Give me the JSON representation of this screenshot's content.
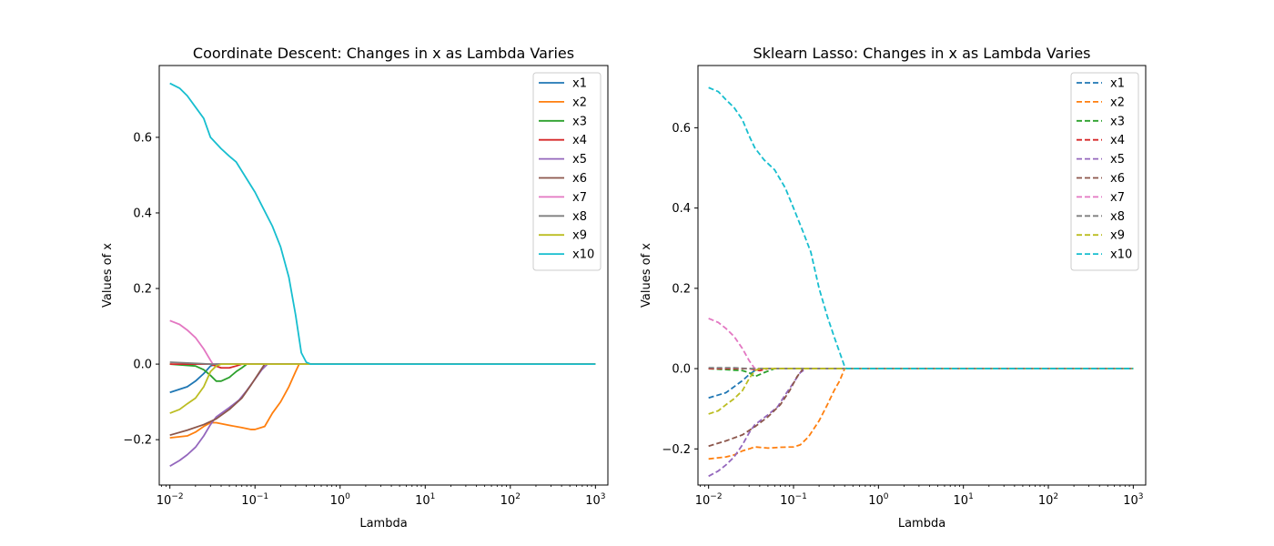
{
  "chart_data": [
    {
      "type": "line",
      "title": "Coordinate Descent: Changes in x as Lambda Varies",
      "xlabel": "Lambda",
      "ylabel": "Values of x",
      "xscale": "log",
      "xlim": [
        0.0075,
        1400
      ],
      "ylim": [
        -0.32,
        0.79
      ],
      "xticks": [
        0.01,
        0.1,
        1,
        10,
        100,
        1000
      ],
      "xtick_labels": [
        [
          "10",
          "−2"
        ],
        [
          "10",
          "−1"
        ],
        [
          "10",
          "0"
        ],
        [
          "10",
          "1"
        ],
        [
          "10",
          "2"
        ],
        [
          "10",
          "3"
        ]
      ],
      "yticks": [
        -0.2,
        0.0,
        0.2,
        0.4,
        0.6
      ],
      "ytick_labels": [
        "−0.2",
        "0.0",
        "0.2",
        "0.4",
        "0.6"
      ],
      "line_style": "solid",
      "legend_position": "upper right",
      "series": [
        {
          "name": "x1",
          "color": "#1f77b4",
          "points": [
            [
              0.01,
              -0.075
            ],
            [
              0.016,
              -0.06
            ],
            [
              0.02,
              -0.045
            ],
            [
              0.025,
              -0.025
            ],
            [
              0.03,
              -0.005
            ],
            [
              0.035,
              0
            ],
            [
              1000,
              0
            ]
          ]
        },
        {
          "name": "x2",
          "color": "#ff7f0e",
          "points": [
            [
              0.01,
              -0.195
            ],
            [
              0.016,
              -0.19
            ],
            [
              0.02,
              -0.18
            ],
            [
              0.025,
              -0.165
            ],
            [
              0.03,
              -0.155
            ],
            [
              0.035,
              -0.155
            ],
            [
              0.05,
              -0.162
            ],
            [
              0.07,
              -0.168
            ],
            [
              0.09,
              -0.173
            ],
            [
              0.1,
              -0.173
            ],
            [
              0.13,
              -0.165
            ],
            [
              0.16,
              -0.13
            ],
            [
              0.2,
              -0.1
            ],
            [
              0.25,
              -0.06
            ],
            [
              0.3,
              -0.02
            ],
            [
              0.33,
              0
            ],
            [
              1000,
              0
            ]
          ]
        },
        {
          "name": "x3",
          "color": "#2ca02c",
          "points": [
            [
              0.01,
              0
            ],
            [
              0.02,
              -0.005
            ],
            [
              0.025,
              -0.015
            ],
            [
              0.03,
              -0.03
            ],
            [
              0.035,
              -0.045
            ],
            [
              0.04,
              -0.045
            ],
            [
              0.05,
              -0.035
            ],
            [
              0.06,
              -0.02
            ],
            [
              0.07,
              -0.01
            ],
            [
              0.08,
              0
            ],
            [
              1000,
              0
            ]
          ]
        },
        {
          "name": "x4",
          "color": "#d62728",
          "points": [
            [
              0.01,
              0
            ],
            [
              0.03,
              0
            ],
            [
              0.04,
              -0.01
            ],
            [
              0.05,
              -0.01
            ],
            [
              0.06,
              -0.005
            ],
            [
              0.07,
              0
            ],
            [
              1000,
              0
            ]
          ]
        },
        {
          "name": "x5",
          "color": "#9467bd",
          "points": [
            [
              0.01,
              -0.27
            ],
            [
              0.013,
              -0.255
            ],
            [
              0.016,
              -0.24
            ],
            [
              0.02,
              -0.22
            ],
            [
              0.025,
              -0.19
            ],
            [
              0.03,
              -0.16
            ],
            [
              0.035,
              -0.14
            ],
            [
              0.05,
              -0.115
            ],
            [
              0.065,
              -0.095
            ],
            [
              0.08,
              -0.07
            ],
            [
              0.1,
              -0.04
            ],
            [
              0.12,
              -0.015
            ],
            [
              0.14,
              0
            ],
            [
              1000,
              0
            ]
          ]
        },
        {
          "name": "x6",
          "color": "#8c564b",
          "points": [
            [
              0.01,
              -0.188
            ],
            [
              0.016,
              -0.175
            ],
            [
              0.025,
              -0.16
            ],
            [
              0.035,
              -0.145
            ],
            [
              0.05,
              -0.12
            ],
            [
              0.07,
              -0.09
            ],
            [
              0.09,
              -0.055
            ],
            [
              0.11,
              -0.025
            ],
            [
              0.13,
              0
            ],
            [
              1000,
              0
            ]
          ]
        },
        {
          "name": "x7",
          "color": "#e377c2",
          "points": [
            [
              0.01,
              0.115
            ],
            [
              0.013,
              0.105
            ],
            [
              0.016,
              0.09
            ],
            [
              0.02,
              0.07
            ],
            [
              0.025,
              0.04
            ],
            [
              0.03,
              0.01
            ],
            [
              0.032,
              0
            ],
            [
              1000,
              0
            ]
          ]
        },
        {
          "name": "x8",
          "color": "#7f7f7f",
          "points": [
            [
              0.01,
              0.005
            ],
            [
              0.02,
              0.002
            ],
            [
              0.03,
              0
            ],
            [
              1000,
              0
            ]
          ]
        },
        {
          "name": "x9",
          "color": "#bcbd22",
          "points": [
            [
              0.01,
              -0.13
            ],
            [
              0.013,
              -0.12
            ],
            [
              0.016,
              -0.105
            ],
            [
              0.02,
              -0.09
            ],
            [
              0.025,
              -0.06
            ],
            [
              0.03,
              -0.02
            ],
            [
              0.035,
              -0.005
            ],
            [
              0.04,
              0
            ],
            [
              1000,
              0
            ]
          ]
        },
        {
          "name": "x10",
          "color": "#17becf",
          "points": [
            [
              0.01,
              0.743
            ],
            [
              0.013,
              0.73
            ],
            [
              0.016,
              0.71
            ],
            [
              0.02,
              0.68
            ],
            [
              0.025,
              0.65
            ],
            [
              0.03,
              0.6
            ],
            [
              0.04,
              0.57
            ],
            [
              0.05,
              0.55
            ],
            [
              0.06,
              0.535
            ],
            [
              0.08,
              0.49
            ],
            [
              0.1,
              0.455
            ],
            [
              0.12,
              0.42
            ],
            [
              0.16,
              0.365
            ],
            [
              0.2,
              0.31
            ],
            [
              0.25,
              0.23
            ],
            [
              0.3,
              0.13
            ],
            [
              0.35,
              0.03
            ],
            [
              0.4,
              0.005
            ],
            [
              0.45,
              0
            ],
            [
              1000,
              0
            ]
          ]
        }
      ]
    },
    {
      "type": "line",
      "title": "Sklearn Lasso: Changes in x as Lambda Varies",
      "xlabel": "Lambda",
      "ylabel": "Values of x",
      "xscale": "log",
      "xlim": [
        0.0075,
        1400
      ],
      "ylim": [
        -0.29,
        0.755
      ],
      "xticks": [
        0.01,
        0.1,
        1,
        10,
        100,
        1000
      ],
      "xtick_labels": [
        [
          "10",
          "−2"
        ],
        [
          "10",
          "−1"
        ],
        [
          "10",
          "0"
        ],
        [
          "10",
          "1"
        ],
        [
          "10",
          "2"
        ],
        [
          "10",
          "3"
        ]
      ],
      "yticks": [
        -0.2,
        0.0,
        0.2,
        0.4,
        0.6
      ],
      "ytick_labels": [
        "−0.2",
        "0.0",
        "0.2",
        "0.4",
        "0.6"
      ],
      "line_style": "dashed",
      "legend_position": "upper right",
      "series": [
        {
          "name": "x1",
          "color": "#1f77b4",
          "points": [
            [
              0.01,
              -0.073
            ],
            [
              0.016,
              -0.06
            ],
            [
              0.02,
              -0.045
            ],
            [
              0.025,
              -0.03
            ],
            [
              0.03,
              -0.015
            ],
            [
              0.035,
              -0.005
            ],
            [
              0.04,
              0
            ],
            [
              1000,
              0
            ]
          ]
        },
        {
          "name": "x2",
          "color": "#ff7f0e",
          "points": [
            [
              0.01,
              -0.225
            ],
            [
              0.016,
              -0.22
            ],
            [
              0.02,
              -0.215
            ],
            [
              0.025,
              -0.205
            ],
            [
              0.03,
              -0.2
            ],
            [
              0.035,
              -0.195
            ],
            [
              0.05,
              -0.198
            ],
            [
              0.07,
              -0.196
            ],
            [
              0.1,
              -0.195
            ],
            [
              0.12,
              -0.19
            ],
            [
              0.15,
              -0.17
            ],
            [
              0.2,
              -0.13
            ],
            [
              0.25,
              -0.09
            ],
            [
              0.3,
              -0.055
            ],
            [
              0.35,
              -0.03
            ],
            [
              0.4,
              0
            ],
            [
              1000,
              0
            ]
          ]
        },
        {
          "name": "x3",
          "color": "#2ca02c",
          "points": [
            [
              0.01,
              0
            ],
            [
              0.025,
              -0.005
            ],
            [
              0.03,
              -0.01
            ],
            [
              0.035,
              -0.02
            ],
            [
              0.045,
              -0.01
            ],
            [
              0.06,
              0
            ],
            [
              1000,
              0
            ]
          ]
        },
        {
          "name": "x4",
          "color": "#d62728",
          "points": [
            [
              0.01,
              0
            ],
            [
              0.03,
              0
            ],
            [
              0.04,
              -0.005
            ],
            [
              0.05,
              0
            ],
            [
              1000,
              0
            ]
          ]
        },
        {
          "name": "x5",
          "color": "#9467bd",
          "points": [
            [
              0.01,
              -0.268
            ],
            [
              0.013,
              -0.255
            ],
            [
              0.016,
              -0.24
            ],
            [
              0.02,
              -0.22
            ],
            [
              0.025,
              -0.19
            ],
            [
              0.03,
              -0.16
            ],
            [
              0.035,
              -0.14
            ],
            [
              0.05,
              -0.115
            ],
            [
              0.065,
              -0.095
            ],
            [
              0.08,
              -0.065
            ],
            [
              0.1,
              -0.035
            ],
            [
              0.12,
              -0.01
            ],
            [
              0.14,
              0
            ],
            [
              1000,
              0
            ]
          ]
        },
        {
          "name": "x6",
          "color": "#8c564b",
          "points": [
            [
              0.01,
              -0.193
            ],
            [
              0.016,
              -0.18
            ],
            [
              0.025,
              -0.165
            ],
            [
              0.035,
              -0.145
            ],
            [
              0.05,
              -0.12
            ],
            [
              0.07,
              -0.09
            ],
            [
              0.09,
              -0.055
            ],
            [
              0.11,
              -0.02
            ],
            [
              0.13,
              0
            ],
            [
              1000,
              0
            ]
          ]
        },
        {
          "name": "x7",
          "color": "#e377c2",
          "points": [
            [
              0.01,
              0.125
            ],
            [
              0.013,
              0.115
            ],
            [
              0.016,
              0.1
            ],
            [
              0.02,
              0.08
            ],
            [
              0.025,
              0.05
            ],
            [
              0.03,
              0.02
            ],
            [
              0.035,
              0
            ],
            [
              1000,
              0
            ]
          ]
        },
        {
          "name": "x8",
          "color": "#7f7f7f",
          "points": [
            [
              0.01,
              0.002
            ],
            [
              0.02,
              0.002
            ],
            [
              0.03,
              0
            ],
            [
              1000,
              0
            ]
          ]
        },
        {
          "name": "x9",
          "color": "#bcbd22",
          "points": [
            [
              0.01,
              -0.113
            ],
            [
              0.013,
              -0.105
            ],
            [
              0.016,
              -0.09
            ],
            [
              0.02,
              -0.075
            ],
            [
              0.025,
              -0.055
            ],
            [
              0.03,
              -0.025
            ],
            [
              0.035,
              -0.005
            ],
            [
              0.04,
              0
            ],
            [
              1000,
              0
            ]
          ]
        },
        {
          "name": "x10",
          "color": "#17becf",
          "points": [
            [
              0.01,
              0.7
            ],
            [
              0.013,
              0.69
            ],
            [
              0.016,
              0.67
            ],
            [
              0.02,
              0.65
            ],
            [
              0.025,
              0.62
            ],
            [
              0.03,
              0.58
            ],
            [
              0.035,
              0.55
            ],
            [
              0.045,
              0.52
            ],
            [
              0.06,
              0.495
            ],
            [
              0.08,
              0.45
            ],
            [
              0.1,
              0.4
            ],
            [
              0.13,
              0.34
            ],
            [
              0.16,
              0.29
            ],
            [
              0.2,
              0.2
            ],
            [
              0.25,
              0.13
            ],
            [
              0.3,
              0.08
            ],
            [
              0.35,
              0.04
            ],
            [
              0.4,
              0.005
            ],
            [
              0.42,
              0
            ],
            [
              1000,
              0
            ]
          ]
        }
      ]
    }
  ]
}
